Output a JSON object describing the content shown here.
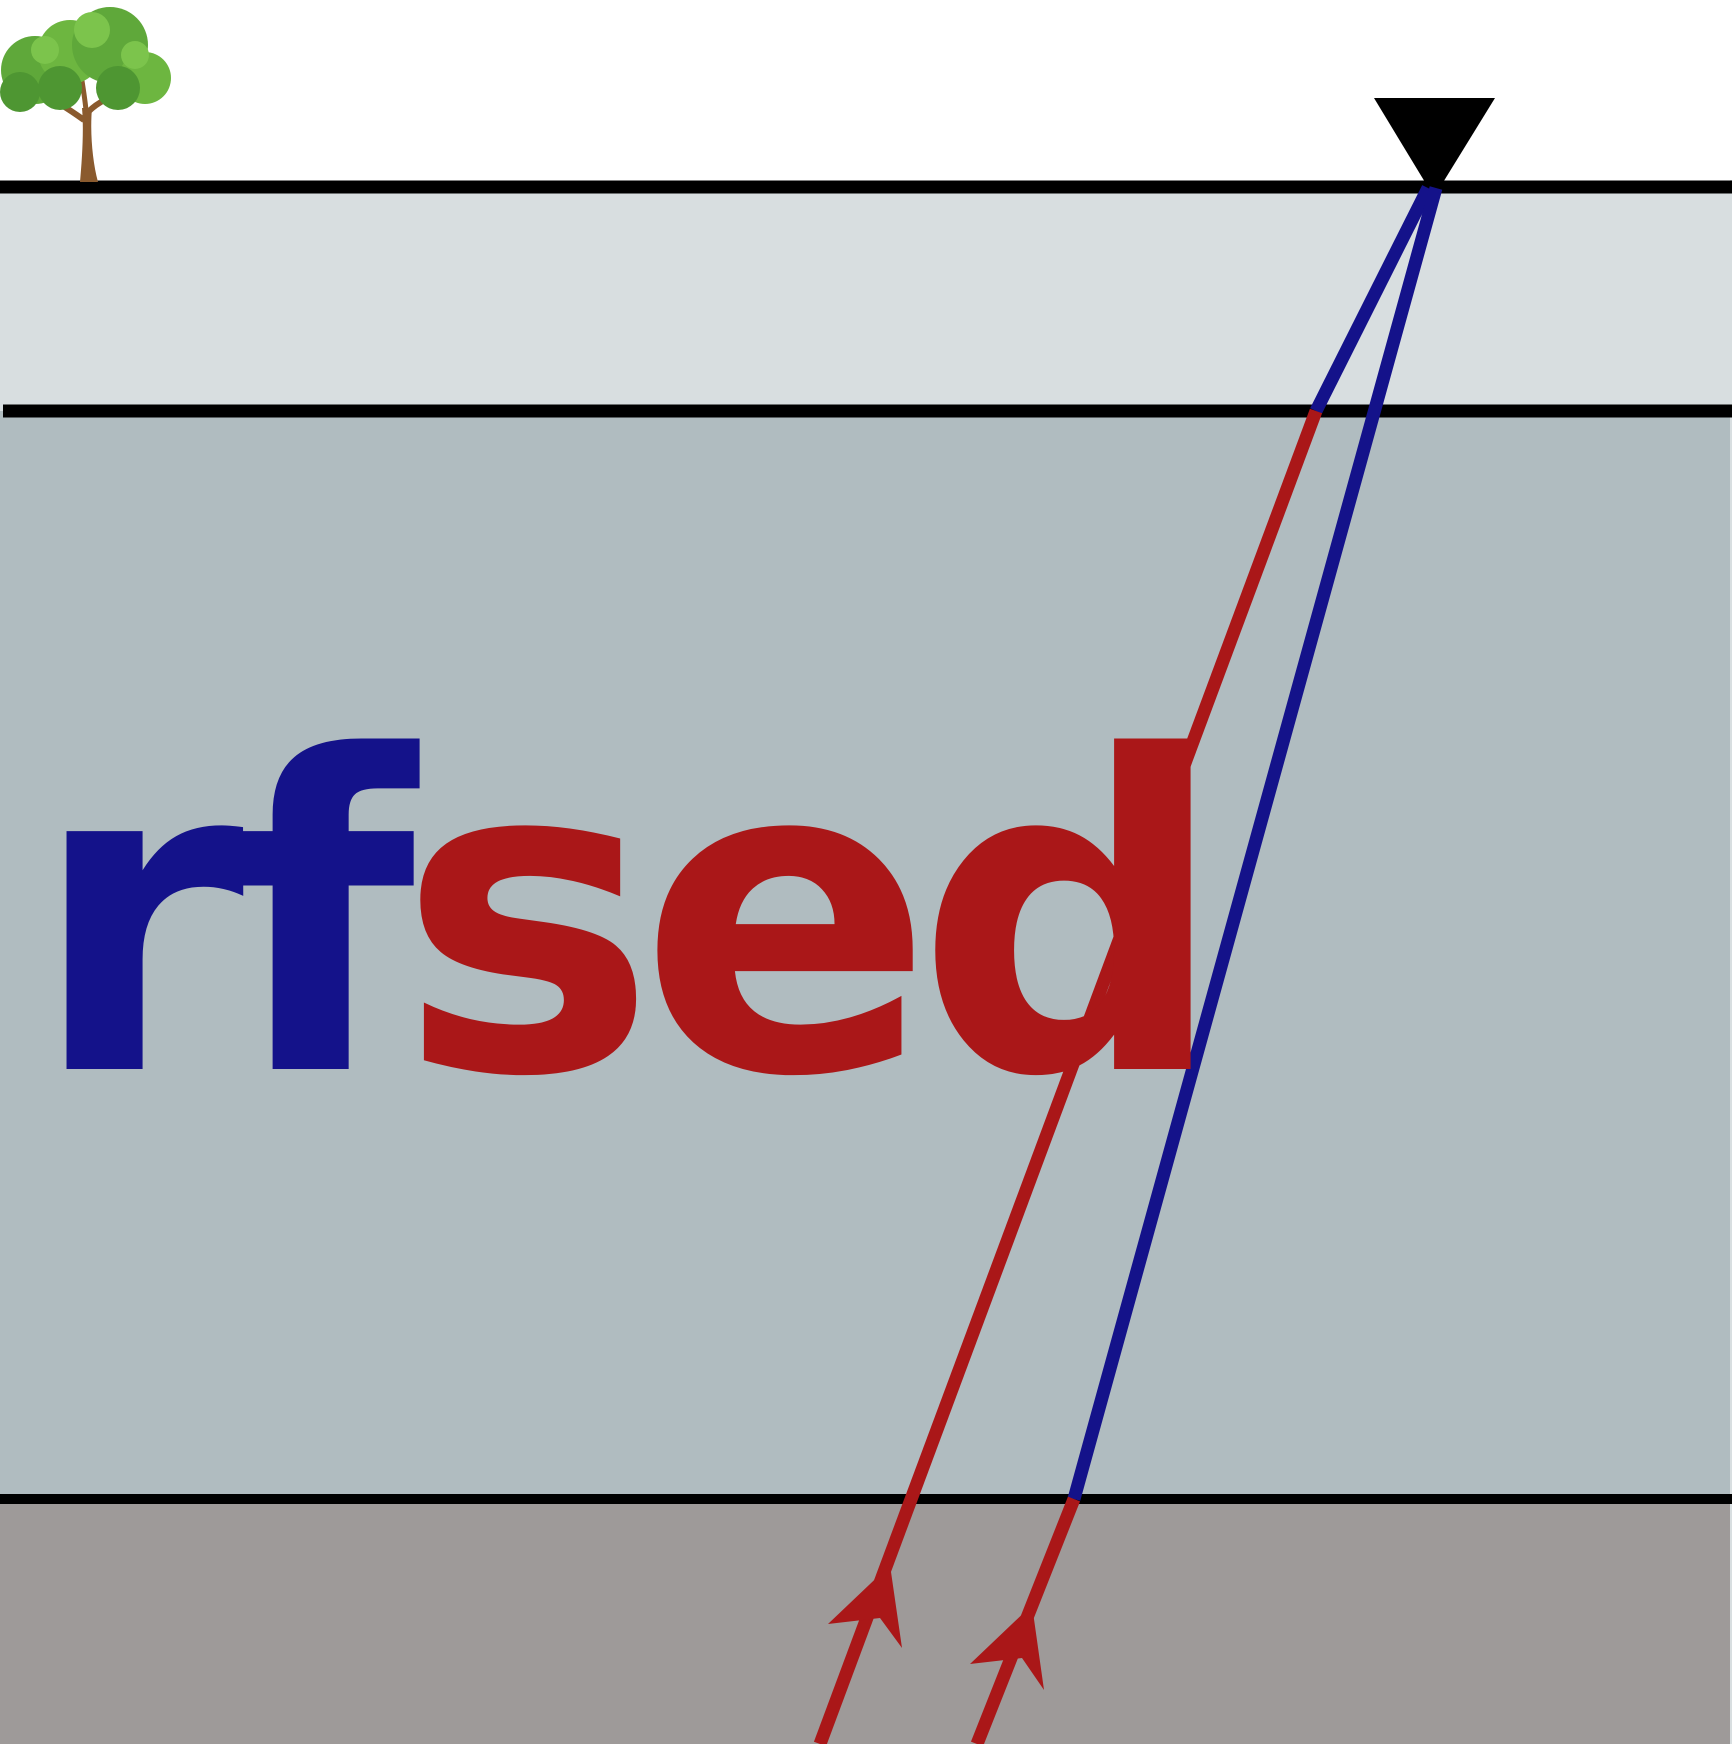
{
  "logo": {
    "part1": "rf",
    "part2": "sed"
  },
  "colors": {
    "sky": "#ffffff",
    "layer_top": "#d8dee0",
    "layer_middle": "#b0bcc0",
    "layer_bottom": "#9e9a99",
    "boundary": "#000000",
    "blue": "#14128a",
    "red": "#aa1718",
    "tree_leaves": "#5fa83a",
    "tree_leaves_dark": "#3e7f28",
    "tree_trunk": "#8a5a2e",
    "station": "#000000"
  },
  "icons": {
    "tree": "tree-icon",
    "station": "seismic-station-triangle-icon",
    "arrow": "ray-arrowhead-icon"
  }
}
